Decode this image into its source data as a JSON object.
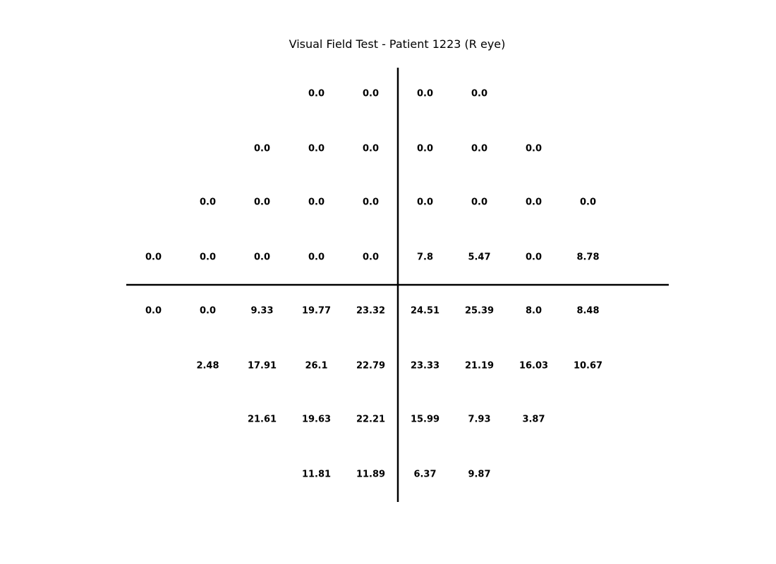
{
  "chart_data": {
    "type": "table",
    "title": "Visual Field Test - Patient 1223 (R eye)",
    "columns": 10,
    "rows": [
      {
        "start_col": 3,
        "values": [
          "0.0",
          "0.0",
          "0.0",
          "0.0"
        ]
      },
      {
        "start_col": 2,
        "values": [
          "0.0",
          "0.0",
          "0.0",
          "0.0",
          "0.0",
          "0.0"
        ]
      },
      {
        "start_col": 1,
        "values": [
          "0.0",
          "0.0",
          "0.0",
          "0.0",
          "0.0",
          "0.0",
          "0.0",
          "0.0"
        ]
      },
      {
        "start_col": 0,
        "values": [
          "0.0",
          "0.0",
          "0.0",
          "0.0",
          "0.0",
          "7.8",
          "5.47",
          "0.0",
          "8.78"
        ]
      },
      {
        "start_col": 0,
        "values": [
          "0.0",
          "0.0",
          "9.33",
          "19.77",
          "23.32",
          "24.51",
          "25.39",
          "8.0",
          "8.48"
        ]
      },
      {
        "start_col": 1,
        "values": [
          "2.48",
          "17.91",
          "26.1",
          "22.79",
          "23.33",
          "21.19",
          "16.03",
          "10.67"
        ]
      },
      {
        "start_col": 2,
        "values": [
          "21.61",
          "19.63",
          "22.21",
          "15.99",
          "7.93",
          "3.87"
        ]
      },
      {
        "start_col": 3,
        "values": [
          "11.81",
          "11.89",
          "6.37",
          "9.87"
        ]
      }
    ],
    "colors": {
      "text": "#000000",
      "axis": "#000000",
      "background": "#ffffff"
    }
  }
}
